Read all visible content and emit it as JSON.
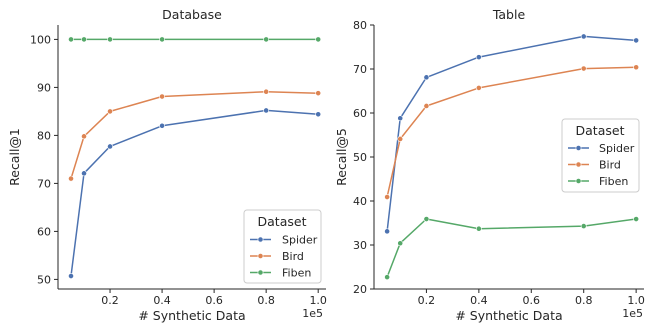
{
  "chart_data": [
    {
      "type": "line",
      "title": "Database",
      "xlabel": "# Synthetic Data",
      "ylabel": "Recall@1",
      "x_offset_label": "1e5",
      "x": [
        0.05,
        0.1,
        0.2,
        0.4,
        0.8,
        1.0
      ],
      "xlim": [
        0.0,
        1.03
      ],
      "ylim": [
        48,
        103
      ],
      "xticks": [
        "0.2",
        "0.4",
        "0.6",
        "0.8",
        "1.0"
      ],
      "yticks": [
        "50",
        "60",
        "70",
        "80",
        "90",
        "100"
      ],
      "grid": false,
      "legend": {
        "title": "Dataset",
        "placement": "lower-right"
      },
      "series": [
        {
          "name": "Spider",
          "color": "#4c72b0",
          "values": [
            50.7,
            72.1,
            77.7,
            82.0,
            85.2,
            84.4
          ]
        },
        {
          "name": "Bird",
          "color": "#dd8452",
          "values": [
            71.0,
            79.8,
            85.0,
            88.1,
            89.1,
            88.8
          ]
        },
        {
          "name": "Fiben",
          "color": "#55a868",
          "values": [
            100,
            100,
            100,
            100,
            100,
            100
          ]
        }
      ]
    },
    {
      "type": "line",
      "title": "Table",
      "xlabel": "# Synthetic Data",
      "ylabel": "Recall@5",
      "x_offset_label": "1e5",
      "x": [
        0.05,
        0.1,
        0.2,
        0.4,
        0.8,
        1.0
      ],
      "xlim": [
        0.0,
        1.03
      ],
      "ylim": [
        20,
        80
      ],
      "xticks": [
        "0.2",
        "0.4",
        "0.6",
        "0.8",
        "1.0"
      ],
      "yticks": [
        "20",
        "30",
        "40",
        "50",
        "60",
        "70",
        "80"
      ],
      "grid": false,
      "legend": {
        "title": "Dataset",
        "placement": "center-right"
      },
      "series": [
        {
          "name": "Spider",
          "color": "#4c72b0",
          "values": [
            33.1,
            58.8,
            68.1,
            72.7,
            77.4,
            76.5
          ]
        },
        {
          "name": "Bird",
          "color": "#dd8452",
          "values": [
            40.9,
            54.1,
            61.6,
            65.7,
            70.1,
            70.4
          ]
        },
        {
          "name": "Fiben",
          "color": "#55a868",
          "values": [
            22.7,
            30.4,
            35.9,
            33.7,
            34.3,
            35.9
          ]
        }
      ]
    }
  ]
}
